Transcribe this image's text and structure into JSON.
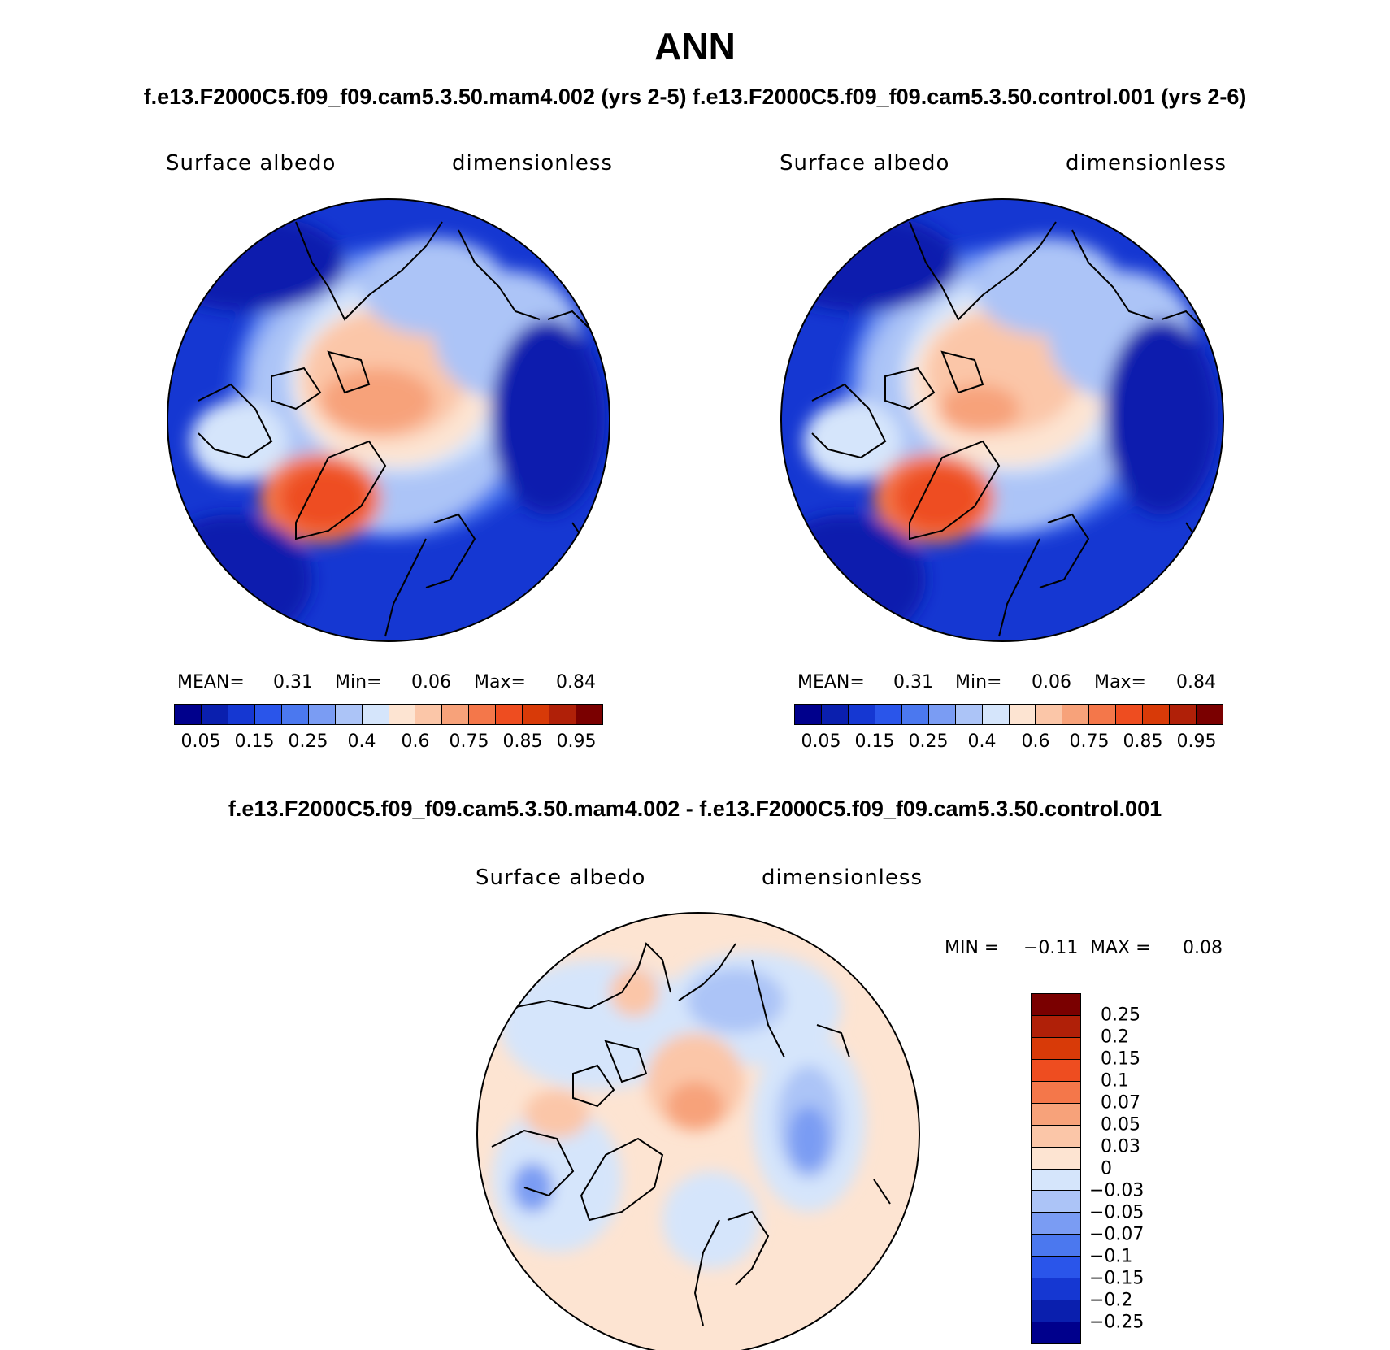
{
  "header": {
    "title": "ANN",
    "subtitle": "f.e13.F2000C5.f09_f09.cam5.3.50.mam4.002 (yrs 2-5) f.e13.F2000C5.f09_f09.cam5.3.50.control.001 (yrs 2-6)",
    "diff_title": "f.e13.F2000C5.f09_f09.cam5.3.50.mam4.002 - f.e13.F2000C5.f09_f09.cam5.3.50.control.001"
  },
  "panels": [
    {
      "variable": "Surface albedo",
      "units": "dimensionless",
      "stats": {
        "mean_label": "MEAN=",
        "mean": "0.31",
        "min_label": "Min=",
        "min": "0.06",
        "max_label": "Max=",
        "max": "0.84"
      }
    },
    {
      "variable": "Surface albedo",
      "units": "dimensionless",
      "stats": {
        "mean_label": "MEAN=",
        "mean": "0.31",
        "min_label": "Min=",
        "min": "0.06",
        "max_label": "Max=",
        "max": "0.84"
      }
    },
    {
      "variable": "Surface albedo",
      "units": "dimensionless",
      "stats": {
        "min_label": "MIN =",
        "min": "−0.11",
        "max_label": "MAX =",
        "max": "0.08"
      }
    }
  ],
  "colorbar_abs": {
    "colors": [
      "#00008c",
      "#0a1fae",
      "#1537d2",
      "#2a55ea",
      "#4b78ef",
      "#7a9cf3",
      "#acc4f7",
      "#d5e5fb",
      "#fde4d2",
      "#fbc6a8",
      "#f7a27a",
      "#f4774a",
      "#ee4d20",
      "#d83a08",
      "#b02008",
      "#7a0000"
    ],
    "labels": [
      "0.05",
      "0.15",
      "0.25",
      "0.4",
      "0.6",
      "0.75",
      "0.85",
      "0.95"
    ]
  },
  "colorbar_diff": {
    "colors": [
      "#7a0000",
      "#b02008",
      "#d83a08",
      "#ee4d20",
      "#f4774a",
      "#f7a27a",
      "#fbc6a8",
      "#fde4d2",
      "#d5e5fb",
      "#acc4f7",
      "#7a9cf3",
      "#4b78ef",
      "#2a55ea",
      "#1537d2",
      "#0a1fae",
      "#00008c"
    ],
    "labels": [
      "0.25",
      "0.2",
      "0.15",
      "0.1",
      "0.07",
      "0.05",
      "0.03",
      "0",
      "−0.03",
      "−0.05",
      "−0.07",
      "−0.1",
      "−0.15",
      "−0.2",
      "−0.25"
    ]
  }
}
